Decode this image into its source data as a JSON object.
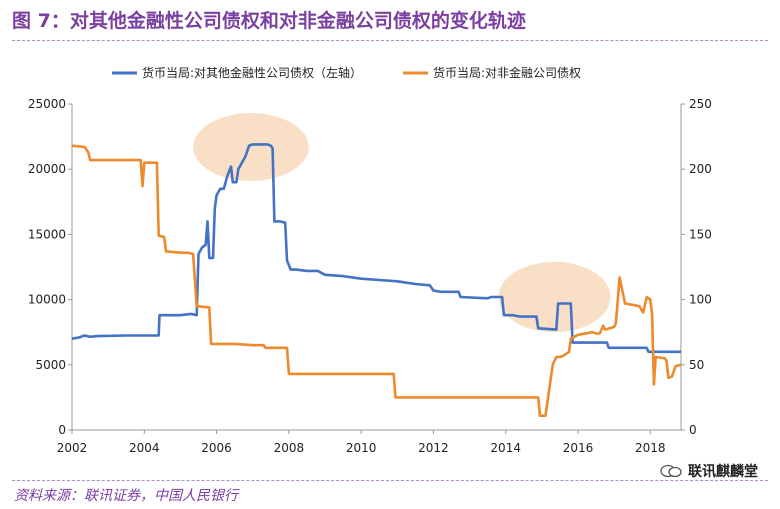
{
  "header": {
    "title": "图 7：对其他金融性公司债权和对非金融公司债权的变化轨迹"
  },
  "footer": {
    "source": "资料来源：联讯证券，中国人民银行",
    "brand": "联讯麒麟堂"
  },
  "chart_data": {
    "type": "line",
    "title": "",
    "xlabel": "",
    "ylabel": "",
    "xlim": [
      2002,
      2018.85
    ],
    "ylim_left": [
      0,
      25000
    ],
    "ylim_right": [
      0,
      250
    ],
    "x_ticks": [
      "2002",
      "2004",
      "2006",
      "2008",
      "2010",
      "2012",
      "2014",
      "2016",
      "2018"
    ],
    "y_left_ticks": [
      "0",
      "5000",
      "10000",
      "15000",
      "20000",
      "25000"
    ],
    "y_right_ticks": [
      "0",
      "50",
      "100",
      "150",
      "200",
      "250"
    ],
    "legend_position": "top",
    "grid": false,
    "series": [
      {
        "name": "货币当局:对其他金融性公司债权（左轴）",
        "axis": "left",
        "color": "#4472c4",
        "points": [
          [
            2002.0,
            7000
          ],
          [
            2002.2,
            7100
          ],
          [
            2002.35,
            7250
          ],
          [
            2002.5,
            7150
          ],
          [
            2002.7,
            7200
          ],
          [
            2003.5,
            7250
          ],
          [
            2004.0,
            7250
          ],
          [
            2004.4,
            7250
          ],
          [
            2004.42,
            8800
          ],
          [
            2005.0,
            8800
          ],
          [
            2005.3,
            8900
          ],
          [
            2005.45,
            8800
          ],
          [
            2005.5,
            13500
          ],
          [
            2005.6,
            14000
          ],
          [
            2005.7,
            14200
          ],
          [
            2005.75,
            16000
          ],
          [
            2005.8,
            13200
          ],
          [
            2005.9,
            13200
          ],
          [
            2005.95,
            17000
          ],
          [
            2006.0,
            18000
          ],
          [
            2006.1,
            18500
          ],
          [
            2006.2,
            18500
          ],
          [
            2006.3,
            19500
          ],
          [
            2006.4,
            20200
          ],
          [
            2006.45,
            19000
          ],
          [
            2006.55,
            19000
          ],
          [
            2006.6,
            20000
          ],
          [
            2006.7,
            20500
          ],
          [
            2006.8,
            21000
          ],
          [
            2006.9,
            21800
          ],
          [
            2007.0,
            21900
          ],
          [
            2007.2,
            21900
          ],
          [
            2007.4,
            21900
          ],
          [
            2007.5,
            21800
          ],
          [
            2007.55,
            21600
          ],
          [
            2007.6,
            16000
          ],
          [
            2007.75,
            16000
          ],
          [
            2007.9,
            15900
          ],
          [
            2007.95,
            13000
          ],
          [
            2008.05,
            12300
          ],
          [
            2008.2,
            12300
          ],
          [
            2008.5,
            12200
          ],
          [
            2008.8,
            12200
          ],
          [
            2009.0,
            11900
          ],
          [
            2009.5,
            11800
          ],
          [
            2010.0,
            11600
          ],
          [
            2010.5,
            11500
          ],
          [
            2011.0,
            11400
          ],
          [
            2011.5,
            11200
          ],
          [
            2011.9,
            11100
          ],
          [
            2012.0,
            10700
          ],
          [
            2012.2,
            10600
          ],
          [
            2012.7,
            10600
          ],
          [
            2012.75,
            10200
          ],
          [
            2013.5,
            10100
          ],
          [
            2013.6,
            10200
          ],
          [
            2013.9,
            10200
          ],
          [
            2013.95,
            8800
          ],
          [
            2014.2,
            8800
          ],
          [
            2014.4,
            8700
          ],
          [
            2014.6,
            8700
          ],
          [
            2014.85,
            8700
          ],
          [
            2014.9,
            7800
          ],
          [
            2015.4,
            7700
          ],
          [
            2015.45,
            9700
          ],
          [
            2015.8,
            9700
          ],
          [
            2015.85,
            6700
          ],
          [
            2016.5,
            6700
          ],
          [
            2016.8,
            6700
          ],
          [
            2016.85,
            6300
          ],
          [
            2017.5,
            6300
          ],
          [
            2017.9,
            6300
          ],
          [
            2017.95,
            6000
          ],
          [
            2018.5,
            6000
          ],
          [
            2018.85,
            6000
          ]
        ]
      },
      {
        "name": "货币当局:对非金融公司债权",
        "axis": "right",
        "color": "#ed8a2e",
        "points": [
          [
            2002.0,
            218
          ],
          [
            2002.35,
            217
          ],
          [
            2002.45,
            213
          ],
          [
            2002.5,
            207
          ],
          [
            2003.9,
            207
          ],
          [
            2003.95,
            187
          ],
          [
            2004.0,
            205
          ],
          [
            2004.35,
            205
          ],
          [
            2004.4,
            149
          ],
          [
            2004.55,
            148
          ],
          [
            2004.6,
            137
          ],
          [
            2005.0,
            136
          ],
          [
            2005.2,
            136
          ],
          [
            2005.35,
            135
          ],
          [
            2005.45,
            95
          ],
          [
            2005.8,
            94
          ],
          [
            2005.85,
            66
          ],
          [
            2006.5,
            66
          ],
          [
            2007.0,
            65
          ],
          [
            2007.3,
            65
          ],
          [
            2007.35,
            63
          ],
          [
            2007.95,
            63
          ],
          [
            2008.0,
            43
          ],
          [
            2010.9,
            43
          ],
          [
            2010.95,
            25
          ],
          [
            2013.5,
            25
          ],
          [
            2014.9,
            25
          ],
          [
            2014.95,
            11
          ],
          [
            2015.1,
            11
          ],
          [
            2015.3,
            50
          ],
          [
            2015.4,
            56
          ],
          [
            2015.5,
            56
          ],
          [
            2015.6,
            57
          ],
          [
            2015.75,
            60
          ],
          [
            2015.8,
            70
          ],
          [
            2016.0,
            73
          ],
          [
            2016.4,
            75
          ],
          [
            2016.5,
            74
          ],
          [
            2016.6,
            74
          ],
          [
            2016.7,
            80
          ],
          [
            2016.75,
            77
          ],
          [
            2017.0,
            79
          ],
          [
            2017.05,
            82
          ],
          [
            2017.15,
            117
          ],
          [
            2017.3,
            97
          ],
          [
            2017.5,
            96
          ],
          [
            2017.7,
            95
          ],
          [
            2017.8,
            90
          ],
          [
            2017.9,
            102
          ],
          [
            2018.0,
            100
          ],
          [
            2018.05,
            89
          ],
          [
            2018.1,
            35
          ],
          [
            2018.15,
            56
          ],
          [
            2018.4,
            55
          ],
          [
            2018.45,
            53
          ],
          [
            2018.5,
            40
          ],
          [
            2018.6,
            41
          ],
          [
            2018.7,
            49
          ],
          [
            2018.85,
            50
          ]
        ]
      }
    ],
    "annotations": [
      {
        "type": "ellipse-highlight",
        "cx": 2006.95,
        "cy": 21700,
        "rx": 1.6,
        "ry": 2600,
        "color": "#f6c9a1"
      },
      {
        "type": "ellipse-highlight",
        "cx": 2015.35,
        "cy": 10200,
        "rx": 1.55,
        "ry": 2700,
        "color": "#f6c9a1"
      }
    ]
  }
}
